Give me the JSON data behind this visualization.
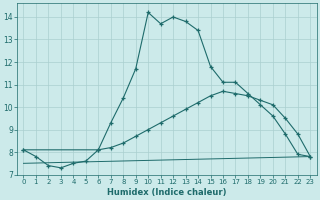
{
  "xlabel": "Humidex (Indice chaleur)",
  "xlim": [
    -0.5,
    23.5
  ],
  "ylim": [
    7.0,
    14.6
  ],
  "yticks": [
    7,
    8,
    9,
    10,
    11,
    12,
    13,
    14
  ],
  "xticks": [
    0,
    1,
    2,
    3,
    4,
    5,
    6,
    7,
    8,
    9,
    10,
    11,
    12,
    13,
    14,
    15,
    16,
    17,
    18,
    19,
    20,
    21,
    22,
    23
  ],
  "bg_color": "#cceaea",
  "line_color": "#1e6b6b",
  "grid_color": "#aacfcf",
  "curve_x": [
    0,
    1,
    2,
    3,
    4,
    5,
    6,
    7,
    8,
    9,
    10,
    11,
    12,
    13,
    14,
    15,
    16,
    17,
    18,
    19,
    20,
    21,
    22,
    23
  ],
  "curve_y": [
    8.1,
    7.8,
    7.4,
    7.3,
    7.5,
    7.6,
    8.1,
    9.3,
    10.4,
    11.7,
    14.2,
    13.7,
    14.0,
    13.8,
    13.4,
    11.8,
    11.1,
    11.1,
    10.6,
    10.1,
    9.6,
    8.8,
    7.9,
    7.8
  ],
  "line1_x": [
    0,
    6,
    7,
    8,
    9,
    10,
    11,
    12,
    13,
    14,
    15,
    16,
    17,
    18,
    19,
    20,
    21,
    22,
    23
  ],
  "line1_y": [
    8.1,
    8.1,
    8.2,
    8.4,
    8.7,
    9.0,
    9.3,
    9.6,
    9.9,
    10.2,
    10.5,
    10.7,
    10.6,
    10.5,
    10.3,
    10.1,
    9.5,
    8.8,
    7.8
  ],
  "line2_x": [
    0,
    23
  ],
  "line2_y": [
    7.5,
    7.8
  ]
}
